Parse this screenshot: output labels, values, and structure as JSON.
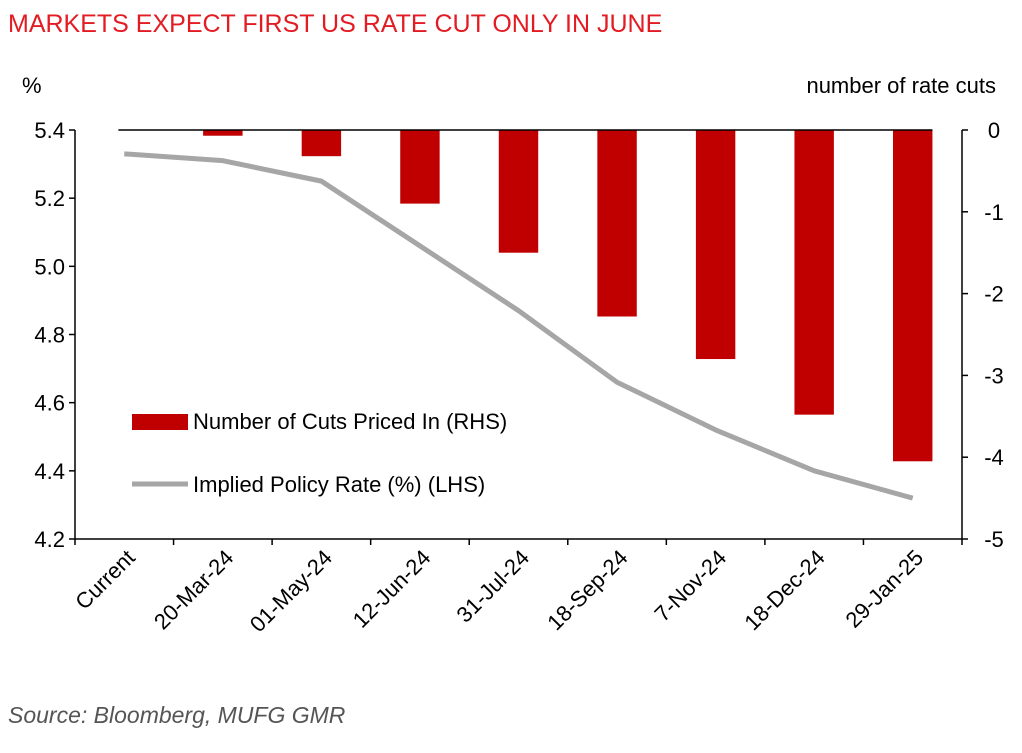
{
  "title": "MARKETS EXPECT FIRST US RATE CUT ONLY IN JUNE",
  "source": "Source: Bloomberg, MUFG GMR",
  "colors": {
    "title": "#e31b23",
    "bars": "#c00000",
    "line": "#a6a6a6"
  },
  "chart_data": {
    "type": "bar",
    "title": "MARKETS EXPECT FIRST US RATE CUT ONLY IN JUNE",
    "categories": [
      "Current",
      "20-Mar-24",
      "01-May-24",
      "12-Jun-24",
      "31-Jul-24",
      "18-Sep-24",
      "7-Nov-24",
      "18-Dec-24",
      "29-Jan-25"
    ],
    "left_axis": {
      "label": "%",
      "min": 4.2,
      "max": 5.4,
      "ticks": [
        "5.4",
        "5.2",
        "5.0",
        "4.8",
        "4.6",
        "4.4",
        "4.2"
      ]
    },
    "right_axis": {
      "label": "number of rate cuts",
      "min": -5,
      "max": 0,
      "ticks": [
        "0",
        "-1",
        "-2",
        "-3",
        "-4",
        "-5"
      ]
    },
    "series": [
      {
        "name": "Number of Cuts Priced In (RHS)",
        "type": "bar",
        "axis": "right",
        "values": [
          0,
          -0.07,
          -0.32,
          -0.9,
          -1.5,
          -2.28,
          -2.8,
          -3.48,
          -4.05
        ]
      },
      {
        "name": "Implied Policy Rate (%) (LHS)",
        "type": "line",
        "axis": "left",
        "values": [
          5.33,
          5.31,
          5.25,
          5.06,
          4.87,
          4.66,
          4.52,
          4.4,
          4.32
        ]
      }
    ],
    "legend_position": "lower-left inside plot",
    "grid": false
  }
}
